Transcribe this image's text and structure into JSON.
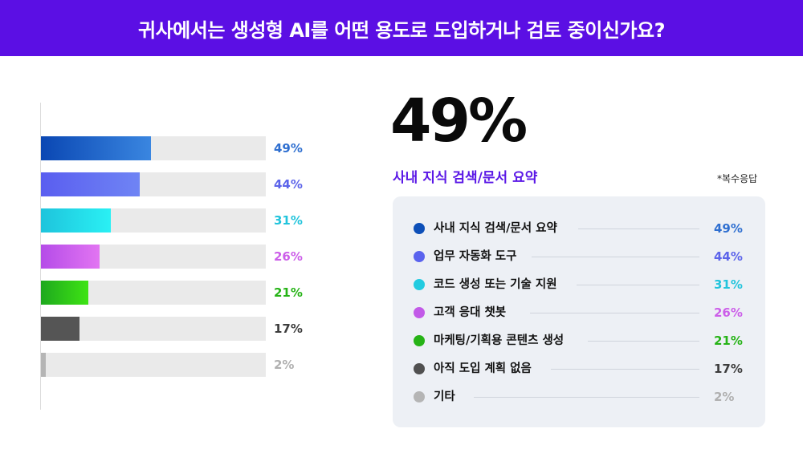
{
  "header": {
    "title": "귀사에서는 생성형 AI를 어떤 용도로 도입하거나 검토 중이신가요?"
  },
  "highlight": {
    "value": "49%",
    "label": "사내 지식 검색/문서 요약"
  },
  "note": "*복수응답",
  "chart_data": {
    "type": "bar",
    "orientation": "horizontal",
    "title": "귀사에서는 생성형 AI를 어떤 용도로 도입하거나 검토 중이신가요?",
    "categories": [
      "사내 지식 검색/문서 요약",
      "업무 자동화 도구",
      "코드 생성 또는 기술 지원",
      "고객 응대 챗봇",
      "마케팅/기획용 콘텐츠 생성",
      "아직 도입 계획 없음",
      "기타"
    ],
    "values": [
      49,
      44,
      31,
      26,
      21,
      17,
      2
    ],
    "value_labels": [
      "49%",
      "44%",
      "31%",
      "26%",
      "21%",
      "17%",
      "2%"
    ],
    "xlim": [
      0,
      100
    ],
    "unit": "%",
    "grid": false,
    "legend_position": "right",
    "colors": [
      {
        "from": "#0a47b3",
        "to": "#3a86e0"
      },
      {
        "from": "#5a5ef0",
        "to": "#6f84f4"
      },
      {
        "from": "#1ec4dc",
        "to": "#2af0f4"
      },
      {
        "from": "#b54ce8",
        "to": "#e275f2"
      },
      {
        "from": "#1ea81e",
        "to": "#3ee414"
      },
      {
        "from": "#555555",
        "to": "#555555"
      },
      {
        "from": "#b5b5b5",
        "to": "#b5b5b5"
      }
    ],
    "label_colors": [
      "#2f6fd0",
      "#5c64ea",
      "#22c4dc",
      "#cc5ee9",
      "#26b316",
      "#3c3c3c",
      "#b0b0b0"
    ],
    "legend_dot_colors": [
      "#0d4fb8",
      "#5a63ee",
      "#22cbe0",
      "#c25ae8",
      "#26b316",
      "#505050",
      "#b5b5b5"
    ]
  }
}
